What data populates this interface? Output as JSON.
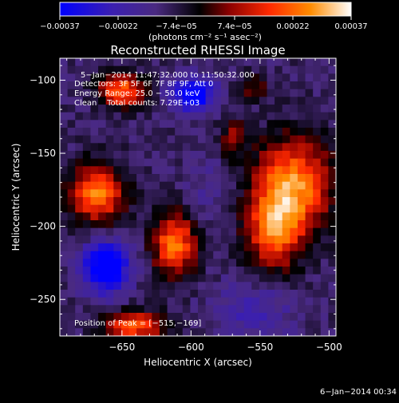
{
  "chart_data": {
    "type": "heatmap",
    "title": "Reconstructed RHESSI Image",
    "xlabel": "Heliocentric X (arcsec)",
    "ylabel": "Heliocentric Y (arcsec)",
    "xlim": [
      -695,
      -495
    ],
    "ylim": [
      -275,
      -85
    ],
    "x_ticks": [
      -650,
      -600,
      -550,
      -500
    ],
    "x_tick_labels": [
      "−650",
      "−600",
      "−550",
      "−500"
    ],
    "y_ticks": [
      -100,
      -150,
      -200,
      -250
    ],
    "y_tick_labels": [
      "−100",
      "−150",
      "−200",
      "−250"
    ],
    "colorbar": {
      "range": [
        -0.00037,
        0.00037
      ],
      "tick_labels": [
        "−0.00037",
        "−0.00022",
        "−7.4e−05",
        "7.4e−05",
        "0.00022",
        "0.00037"
      ],
      "unit_label": "(photons cm⁻² s⁻¹ asec⁻²)",
      "colors": [
        "#0000ff",
        "#3b1fb0",
        "#4a2a80",
        "#000000",
        "#8a0000",
        "#ff2a00",
        "#ff8c00",
        "#ffffff"
      ]
    },
    "annotations": [
      "5−Jan−2014 11:47:32.000 to 11:50:32.000",
      "Detectors: 3F 5F 6F 7F 8F 9F, Att 0",
      "Energy Range: 25.0 − 50.0 keV",
      "Clean    Total counts: 7.29E+03"
    ],
    "peak_label": "Position of Peak = [−515,−169]",
    "sources": [
      {
        "x": -527,
        "y": -172,
        "peak": 0.00037,
        "sx": 20,
        "sy": 22
      },
      {
        "x": -540,
        "y": -205,
        "peak": 0.00028,
        "sx": 14,
        "sy": 18
      },
      {
        "x": -612,
        "y": -212,
        "peak": 0.00034,
        "sx": 11,
        "sy": 15
      },
      {
        "x": -668,
        "y": -178,
        "peak": 0.00034,
        "sx": 14,
        "sy": 14
      },
      {
        "x": -650,
        "y": -107,
        "peak": 0.00032,
        "sx": 12,
        "sy": 8
      },
      {
        "x": -570,
        "y": -140,
        "peak": 0.00018,
        "sx": 6,
        "sy": 10
      },
      {
        "x": -556,
        "y": -105,
        "peak": 0.00014,
        "sx": 8,
        "sy": 6
      },
      {
        "x": -640,
        "y": -268,
        "peak": 0.0003,
        "sx": 16,
        "sy": 7
      },
      {
        "x": -662,
        "y": -228,
        "peak": -0.00037,
        "sx": 12,
        "sy": 12
      },
      {
        "x": -598,
        "y": -110,
        "peak": -0.0003,
        "sx": 12,
        "sy": 9
      },
      {
        "x": -555,
        "y": -258,
        "peak": -0.00012,
        "sx": 20,
        "sy": 14
      },
      {
        "x": -585,
        "y": -175,
        "peak": -6e-05,
        "sx": 15,
        "sy": 15
      }
    ]
  },
  "footer_date": "6−Jan−2014 00:34"
}
